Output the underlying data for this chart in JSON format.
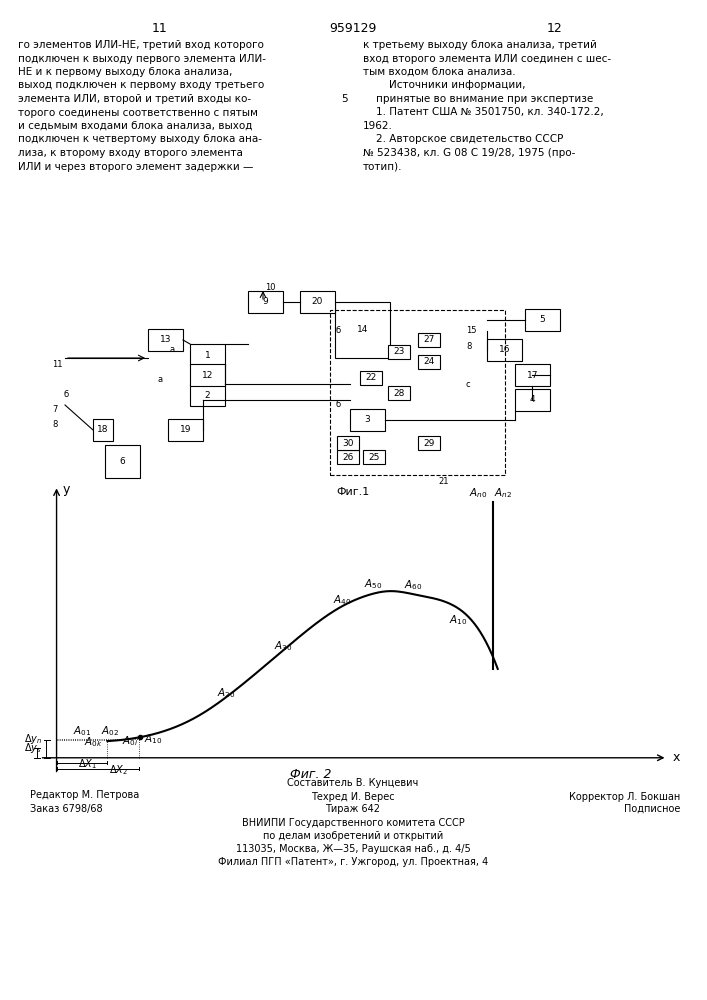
{
  "title_number": "959129",
  "page_left": "11",
  "page_right": "12",
  "text_left": "го элементов ИЛИ-НЕ, третий вход которого\nподключен к выходу первого элемента ИЛИ-\nНЕ и к первому выходу блока анализа,\nвыход подключен к первому входу третьего\nэлемента ИЛИ, второй и третий входы ко-\nторого соединены соответственно с пятым\nи седьмым входами блока анализа, выход\nподключен к четвертому выходу блока ана-\nлиза, к второму входу второго элемента\nИЛИ и через второго элемент задержки —",
  "text_right": "к третьему выходу блока анализа, третий\nвход второго элемента ИЛИ соединен с шес-\nтым входом блока анализа.\n        Источники информации,\n    принятые во внимание при экспертизе\n    1. Патент США № 3501750, кл. 340-172.2,\n1962.\n    2. Авторское свидетельство СССР\n№ 523438, кл. G 08 C 19/28, 1975 (про-\nтотип).",
  "fig1_caption": "Фиг.1",
  "fig2_caption": "Фиг. 2",
  "footer_line1_left": "Редактор М. Петрова",
  "footer_line1_center": "Составитель В. Кунцевич",
  "footer_line1_right": "",
  "footer_line2_left": "Заказ 6798/68",
  "footer_line2_center": "Техред И. Верес",
  "footer_line2_right": "Корректор Л. Бокшан",
  "footer_line3_left": "",
  "footer_line3_center": "Тираж 642",
  "footer_line3_right": "Подписное",
  "footer_vnipi": "ВНИИПИ Государственного комитета СССР",
  "footer_vnipi2": "по делам изобретений и открытий",
  "footer_address": "113035, Москва, Ж—35, Раушская наб., д. 4/5",
  "footer_filial": "Филиал ПГП «Патент», г. Ужгород, ул. Проектная, 4",
  "bg_color": "#ffffff",
  "text_color": "#000000",
  "curve_color": "#000000",
  "fig2_number_size": 9,
  "anno_size": 7
}
